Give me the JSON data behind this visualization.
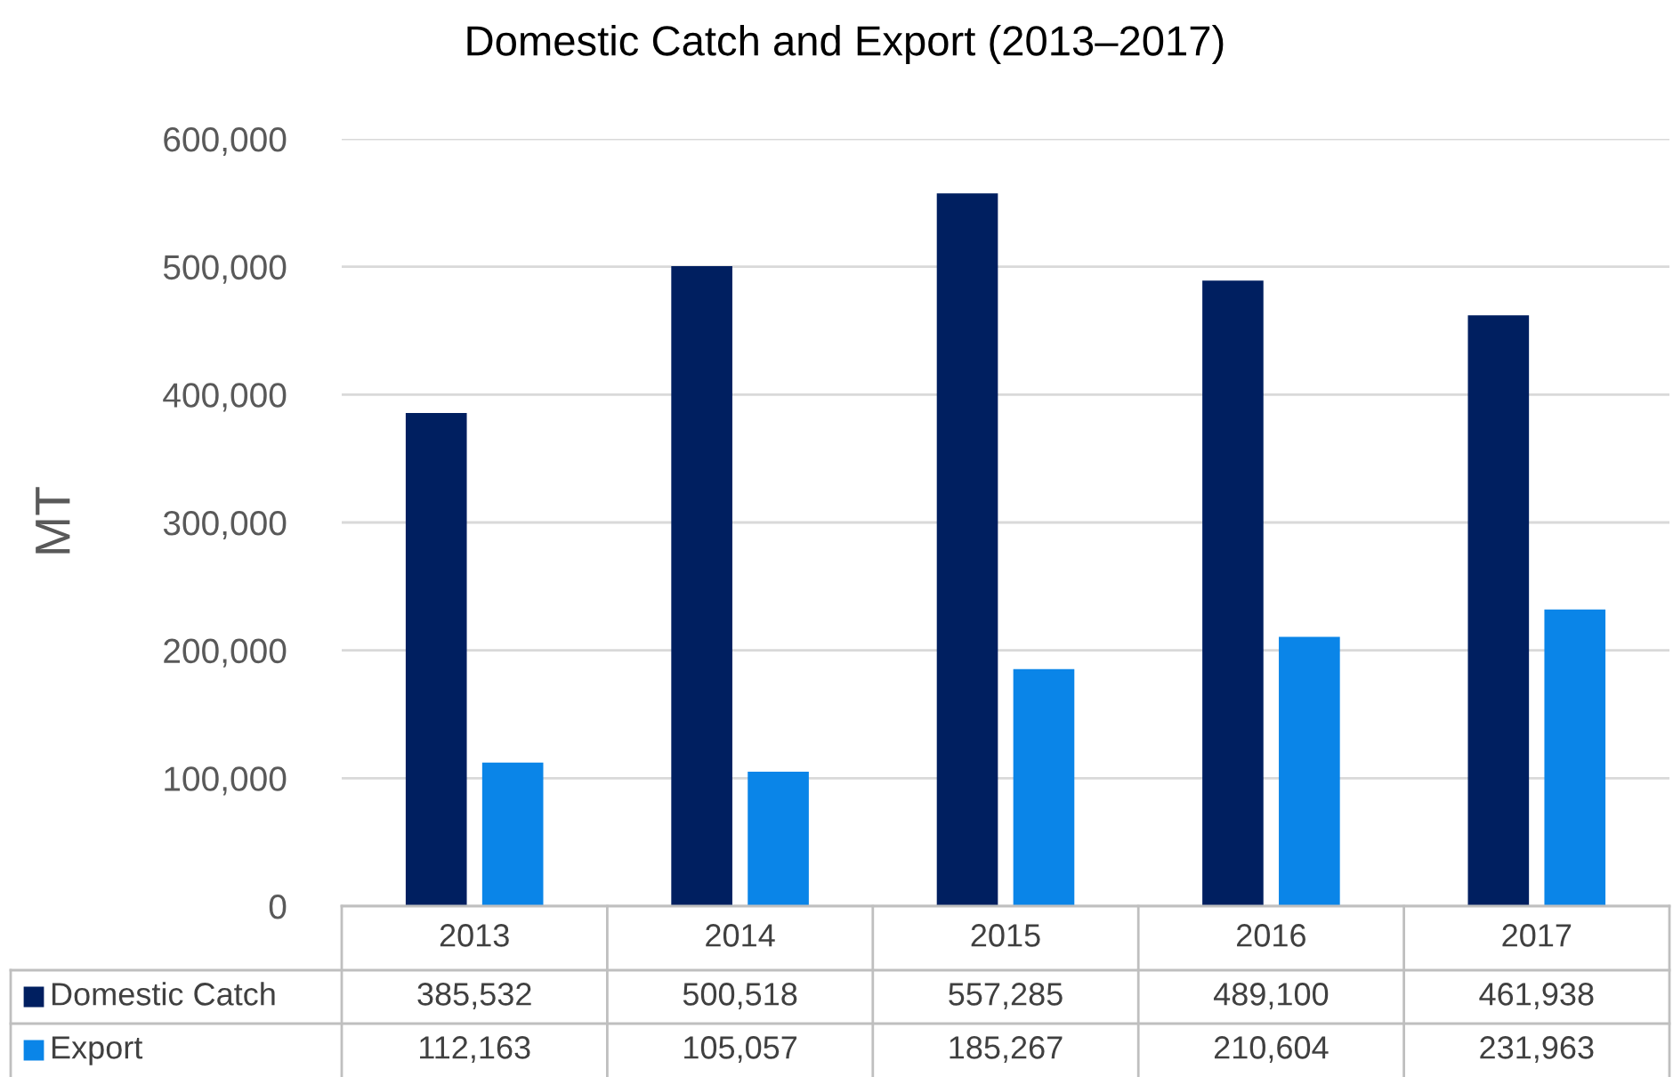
{
  "chart_data": {
    "type": "bar",
    "title": "Domestic Catch and Export (2013–2017)",
    "ylabel": "MT",
    "categories": [
      "2013",
      "2014",
      "2015",
      "2016",
      "2017"
    ],
    "series": [
      {
        "name": "Domestic Catch",
        "color": "#001f60",
        "values": [
          385532,
          500518,
          557285,
          489100,
          461938
        ],
        "value_labels": [
          "385,532",
          "500,518",
          "557,285",
          "489,100",
          "461,938"
        ]
      },
      {
        "name": "Export",
        "color": "#0a85e8",
        "values": [
          112163,
          105057,
          185267,
          210604,
          231963
        ],
        "value_labels": [
          "112,163",
          "105,057",
          "185,267",
          "210,604",
          "231,963"
        ]
      }
    ],
    "ylim": [
      0,
      600000
    ],
    "yticks": [
      {
        "value": 0,
        "label": "0"
      },
      {
        "value": 100000,
        "label": "100,000"
      },
      {
        "value": 200000,
        "label": "200,000"
      },
      {
        "value": 300000,
        "label": "300,000"
      },
      {
        "value": 400000,
        "label": "400,000"
      },
      {
        "value": 500000,
        "label": "500,000"
      },
      {
        "value": 600000,
        "label": "600,000"
      }
    ],
    "grid": "y",
    "legend": "bottom left"
  }
}
